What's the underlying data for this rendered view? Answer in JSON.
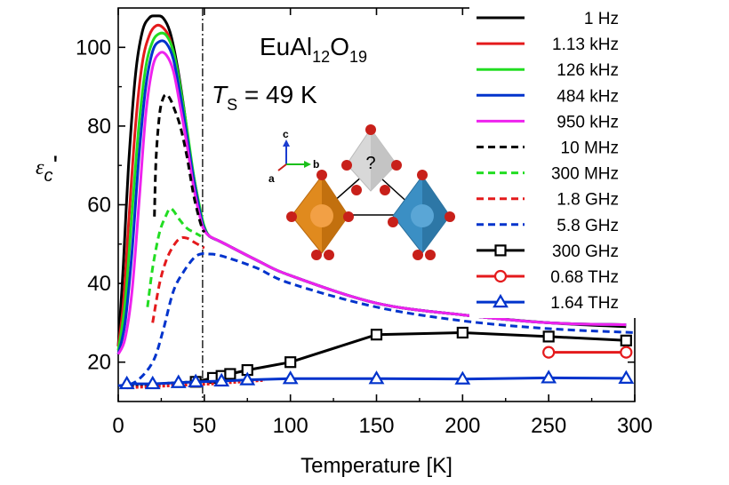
{
  "chart_data": {
    "type": "line",
    "xlabel": "Temperature [K]",
    "ylabel": {
      "symbol": "ε",
      "subscript": "c",
      "suffix": "'"
    },
    "xlim": [
      0,
      300
    ],
    "ylim": [
      10,
      110
    ],
    "xticks": [
      0,
      50,
      100,
      150,
      200,
      250,
      300
    ],
    "yticks": [
      20,
      40,
      60,
      80,
      100
    ],
    "grid": false,
    "legend_position": "right",
    "annotations": {
      "formula": {
        "base1": "EuAl",
        "sub1": "12",
        "base2": "O",
        "sub2": "19"
      },
      "transition": {
        "symbol": "T",
        "sub": "S",
        "text": " = 49 K",
        "x": 49
      },
      "crystal_question": "?",
      "axes_labels": {
        "c": "c",
        "a": "a",
        "b": "b"
      }
    },
    "series": [
      {
        "name": "1 Hz",
        "color": "#000000",
        "style": "solid",
        "x": [
          0,
          3,
          6,
          10,
          14,
          18,
          22,
          26,
          30,
          34,
          38,
          42,
          46,
          48,
          50,
          53,
          60,
          80,
          100,
          150,
          200,
          250,
          295
        ],
        "y": [
          24,
          45,
          70,
          93,
          104,
          107.5,
          108,
          107.5,
          104,
          96,
          85,
          72,
          62,
          57,
          54,
          52,
          50.5,
          46,
          42,
          35,
          32,
          30,
          29
        ]
      },
      {
        "name": "1.13 kHz",
        "color": "#e41a1c",
        "style": "solid",
        "x": [
          0,
          3,
          6,
          10,
          14,
          18,
          22,
          26,
          30,
          34,
          38,
          42,
          46,
          48,
          50,
          53,
          60,
          80,
          100,
          150,
          200,
          250,
          295
        ],
        "y": [
          24,
          35,
          55,
          80,
          96,
          103,
          105.5,
          105,
          102,
          94,
          83,
          71,
          61,
          57,
          54,
          52,
          50.5,
          46,
          42,
          35,
          32,
          30,
          29.5
        ]
      },
      {
        "name": "126 kHz",
        "color": "#22dd22",
        "style": "solid",
        "x": [
          0,
          4,
          8,
          12,
          16,
          20,
          24,
          28,
          32,
          36,
          40,
          44,
          48,
          50,
          53,
          60,
          80,
          100,
          150,
          200,
          250,
          295
        ],
        "y": [
          23,
          35,
          58,
          80,
          95,
          101.5,
          103.5,
          103,
          99,
          90,
          79,
          67,
          58,
          54.5,
          52,
          50.5,
          46,
          42,
          35,
          32,
          30,
          29.5
        ]
      },
      {
        "name": "484 kHz",
        "color": "#0033cc",
        "style": "solid",
        "x": [
          0,
          4,
          8,
          12,
          16,
          20,
          24,
          28,
          32,
          36,
          40,
          44,
          48,
          50,
          53,
          60,
          80,
          100,
          150,
          200,
          250,
          295
        ],
        "y": [
          22,
          30,
          48,
          72,
          90,
          99,
          101.5,
          101,
          97,
          88,
          77,
          66,
          57,
          54,
          52,
          50.5,
          46,
          42,
          35,
          32,
          30,
          29.5
        ]
      },
      {
        "name": "950 kHz",
        "color": "#ee22ee",
        "style": "solid",
        "x": [
          0,
          4,
          8,
          12,
          16,
          20,
          24,
          28,
          32,
          36,
          40,
          44,
          48,
          50,
          53,
          60,
          80,
          100,
          150,
          200,
          250,
          295
        ],
        "y": [
          22,
          26,
          38,
          60,
          83,
          95,
          98.5,
          98,
          94,
          85,
          75,
          64,
          56,
          53.5,
          52,
          50.5,
          46,
          42,
          35,
          32,
          30,
          29.5
        ]
      },
      {
        "name": "10 MHz",
        "color": "#000000",
        "style": "dashed",
        "x": [
          21,
          22,
          24,
          26,
          28,
          30,
          32,
          36,
          40,
          44,
          48,
          50
        ],
        "y": [
          57,
          72,
          83,
          87,
          88,
          87,
          85,
          80,
          72,
          62,
          55,
          53
        ]
      },
      {
        "name": "300 MHz",
        "color": "#22dd22",
        "style": "dashed",
        "x": [
          17,
          20,
          24,
          28,
          30,
          32,
          36,
          40,
          44,
          48
        ],
        "y": [
          34,
          44,
          53,
          57.5,
          59,
          58.5,
          56,
          54,
          53,
          52
        ]
      },
      {
        "name": "1.8 GHz",
        "color": "#e41a1c",
        "style": "dashed",
        "x": [
          20,
          24,
          28,
          32,
          36,
          40,
          44,
          48,
          50
        ],
        "y": [
          30,
          40,
          46,
          49.5,
          51.5,
          51.5,
          50.5,
          49.5,
          49
        ]
      },
      {
        "name": "5.8 GHz",
        "color": "#0033cc",
        "style": "dashed",
        "x": [
          0,
          10,
          20,
          26,
          32,
          38,
          44,
          48,
          52,
          60,
          80,
          100,
          150,
          200,
          250,
          300
        ],
        "y": [
          14,
          15,
          20,
          28,
          38,
          43,
          46.5,
          47.5,
          47.5,
          47,
          44,
          40,
          34,
          30.5,
          28.5,
          27.5
        ]
      },
      {
        "name": "300 GHz",
        "color": "#000000",
        "style": "markers-line",
        "marker": "square",
        "dense_x": [
          5,
          15,
          25,
          35,
          45,
          50,
          55,
          60
        ],
        "dense_y": [
          14,
          14.2,
          14.5,
          14.8,
          15,
          15.3,
          15.6,
          16
        ],
        "x": [
          45,
          55,
          60,
          65,
          75,
          100,
          150,
          200,
          250,
          295
        ],
        "y": [
          15,
          16,
          16.5,
          17,
          18,
          20,
          27,
          27.5,
          26.5,
          25.5
        ]
      },
      {
        "name": "0.68 THz",
        "color": "#e41a1c",
        "style": "markers-line",
        "marker": "circle",
        "dense_x": [
          5,
          15,
          25,
          35,
          45,
          55,
          65,
          75,
          85
        ],
        "dense_y": [
          13.5,
          13.7,
          13.9,
          14.1,
          14.3,
          14.5,
          14.8,
          15.1,
          15.4
        ],
        "x": [
          250,
          295
        ],
        "y": [
          22.5,
          22.5
        ]
      },
      {
        "name": "1.64 THz",
        "color": "#0033cc",
        "style": "markers-line",
        "marker": "triangle",
        "x": [
          5,
          20,
          35,
          45,
          60,
          75,
          100,
          150,
          200,
          250,
          295
        ],
        "y": [
          14.5,
          14.5,
          14.8,
          15,
          15.2,
          15.5,
          15.8,
          15.8,
          15.7,
          16,
          15.9
        ]
      }
    ]
  }
}
